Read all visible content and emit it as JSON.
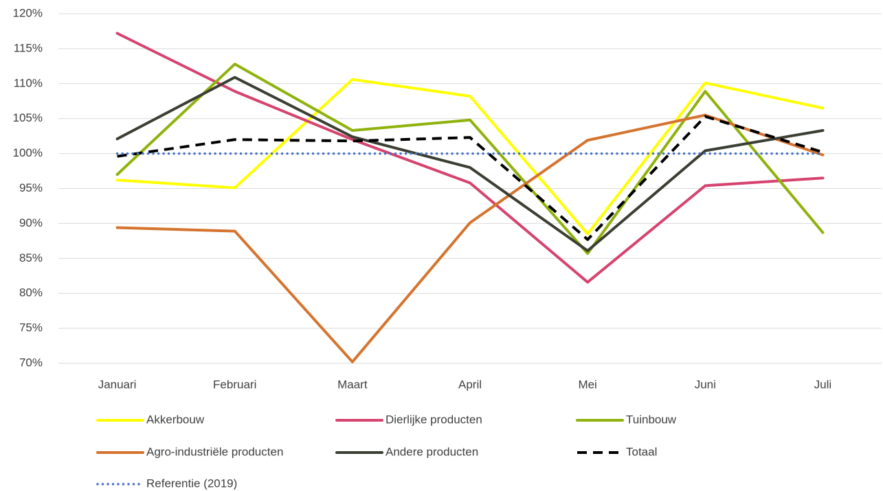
{
  "chart_data": {
    "type": "line",
    "categories": [
      "Januari",
      "Februari",
      "Maart",
      "April",
      "Mei",
      "Juni",
      "Juli"
    ],
    "series": [
      {
        "name": "Akkerbouw",
        "color": "#ffff00",
        "line_style": "solid",
        "values": [
          96.2,
          95.1,
          110.6,
          108.2,
          88.5,
          110.1,
          106.5
        ]
      },
      {
        "name": "Dierlijke producten",
        "color": "#d6436e",
        "line_style": "solid",
        "values": [
          117.2,
          108.9,
          102.0,
          95.8,
          81.6,
          95.4,
          96.5
        ]
      },
      {
        "name": "Tuinbouw",
        "color": "#8fb20c",
        "line_style": "solid",
        "values": [
          97.0,
          112.8,
          103.3,
          104.8,
          85.7,
          108.9,
          88.7
        ]
      },
      {
        "name": "Agro-industriële producten",
        "color": "#d5742e",
        "line_style": "solid",
        "values": [
          89.4,
          88.9,
          70.2,
          90.1,
          101.9,
          105.5,
          99.8
        ]
      },
      {
        "name": "Andere producten",
        "color": "#3b3f33",
        "line_style": "solid",
        "values": [
          102.1,
          110.9,
          102.4,
          98.0,
          86.1,
          100.4,
          103.3
        ]
      },
      {
        "name": "Totaal",
        "color": "#000000",
        "line_style": "dashed",
        "values": [
          99.6,
          102.0,
          101.8,
          102.3,
          87.7,
          105.3,
          100.2
        ]
      },
      {
        "name": "Referentie (2019)",
        "color": "#4472c4",
        "line_style": "dotted",
        "values": [
          100,
          100,
          100,
          100,
          100,
          100,
          100
        ]
      }
    ],
    "ylim": [
      70,
      120
    ],
    "yticks": [
      {
        "value": 70,
        "label": "70%"
      },
      {
        "value": 75,
        "label": "75%"
      },
      {
        "value": 80,
        "label": "80%"
      },
      {
        "value": 85,
        "label": "85%"
      },
      {
        "value": 90,
        "label": "90%"
      },
      {
        "value": 95,
        "label": "95%"
      },
      {
        "value": 100,
        "label": "100%"
      },
      {
        "value": 105,
        "label": "105%"
      },
      {
        "value": 110,
        "label": "110%"
      },
      {
        "value": 115,
        "label": "115%"
      },
      {
        "value": 120,
        "label": "120%"
      }
    ],
    "grid": true
  }
}
